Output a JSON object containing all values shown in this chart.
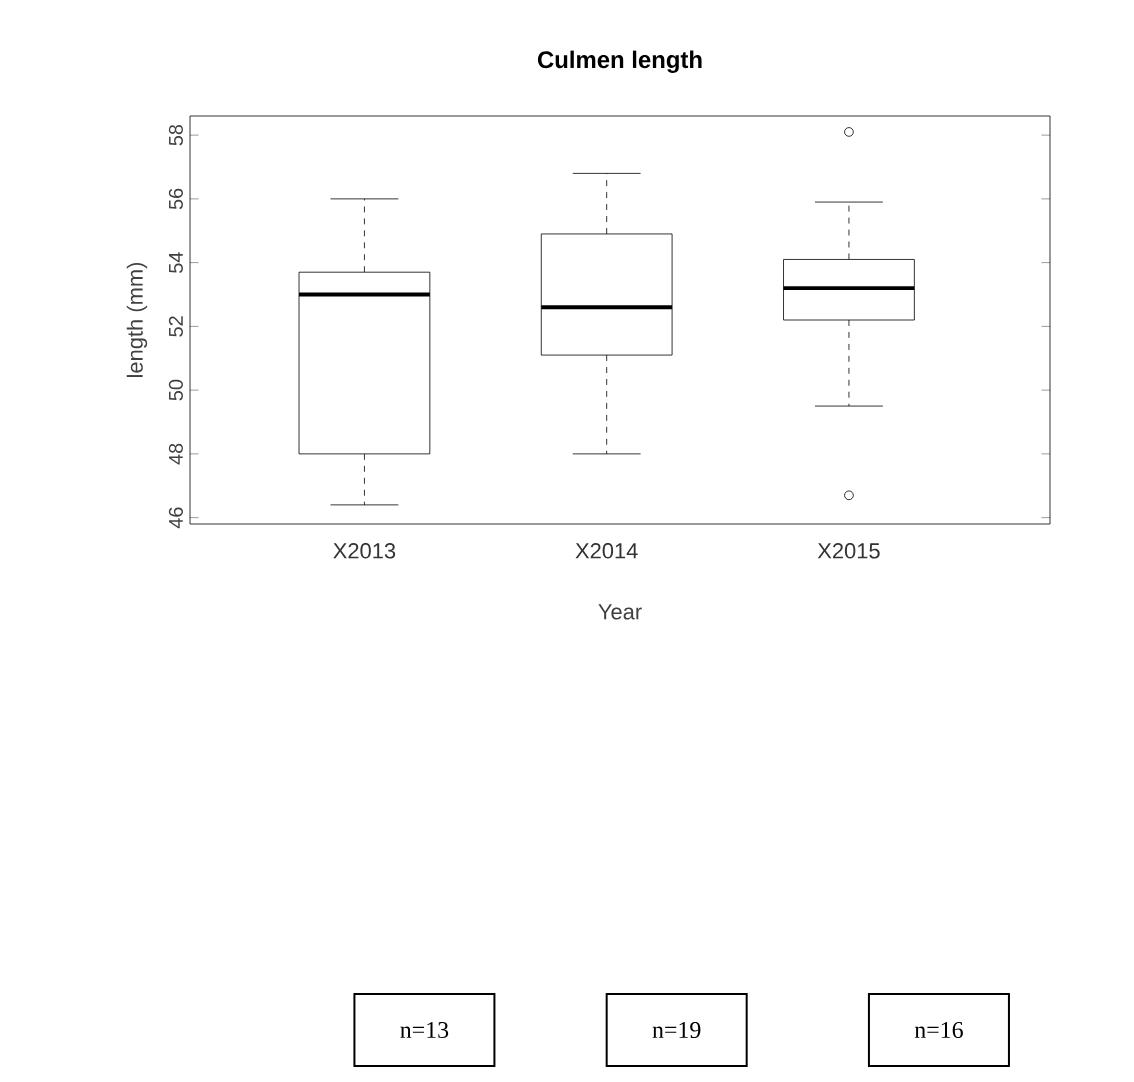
{
  "chart_data": {
    "type": "box",
    "title": "Culmen length",
    "xlabel": "Year",
    "ylabel": "length (mm)",
    "categories": [
      "X2013",
      "X2014",
      "X2015"
    ],
    "boxes": [
      {
        "low": 46.4,
        "q1": 48.0,
        "median": 53.0,
        "q3": 53.7,
        "high": 56.0
      },
      {
        "low": 48.0,
        "q1": 51.1,
        "median": 52.6,
        "q3": 54.9,
        "high": 56.8
      },
      {
        "low": 49.5,
        "q1": 52.2,
        "median": 53.2,
        "q3": 54.1,
        "high": 55.9,
        "outliers": [
          58.1,
          46.7
        ]
      }
    ],
    "ylim": [
      45.8,
      58.6
    ],
    "yticks": [
      46,
      48,
      50,
      52,
      54,
      56,
      58
    ],
    "annotations": [
      "n=13",
      "n=19",
      "n=16"
    ]
  }
}
